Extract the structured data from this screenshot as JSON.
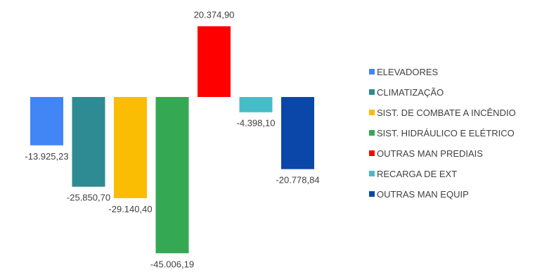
{
  "chart_data": {
    "type": "bar",
    "title": "",
    "xlabel": "",
    "ylabel": "",
    "grid": false,
    "legend_position": "right",
    "ylim": [
      -46000,
      21000
    ],
    "categories": [
      "ELEVADORES",
      "CLIMATIZAÇÃO",
      "SIST. DE COMBATE A INCÊNDIO",
      "SIST. HIDRÁULICO E ELÉTRICO",
      "OUTRAS MAN PREDIAIS",
      "RECARGA DE EXT",
      "OUTRAS MAN EQUIP"
    ],
    "values": [
      -13925.23,
      -25850.7,
      -29140.4,
      -45006.19,
      20374.9,
      -4398.1,
      -20778.84
    ],
    "data_labels": [
      "-13.925,23",
      "-25.850,70",
      "-29.140,40",
      "-45.006,19",
      "20.374,90",
      "-4.398,10",
      "-20.778,84"
    ],
    "colors": [
      "#4285F4",
      "#2E8B93",
      "#FBBC04",
      "#34A853",
      "#FF0000",
      "#46BDC6",
      "#0B47A8"
    ]
  }
}
